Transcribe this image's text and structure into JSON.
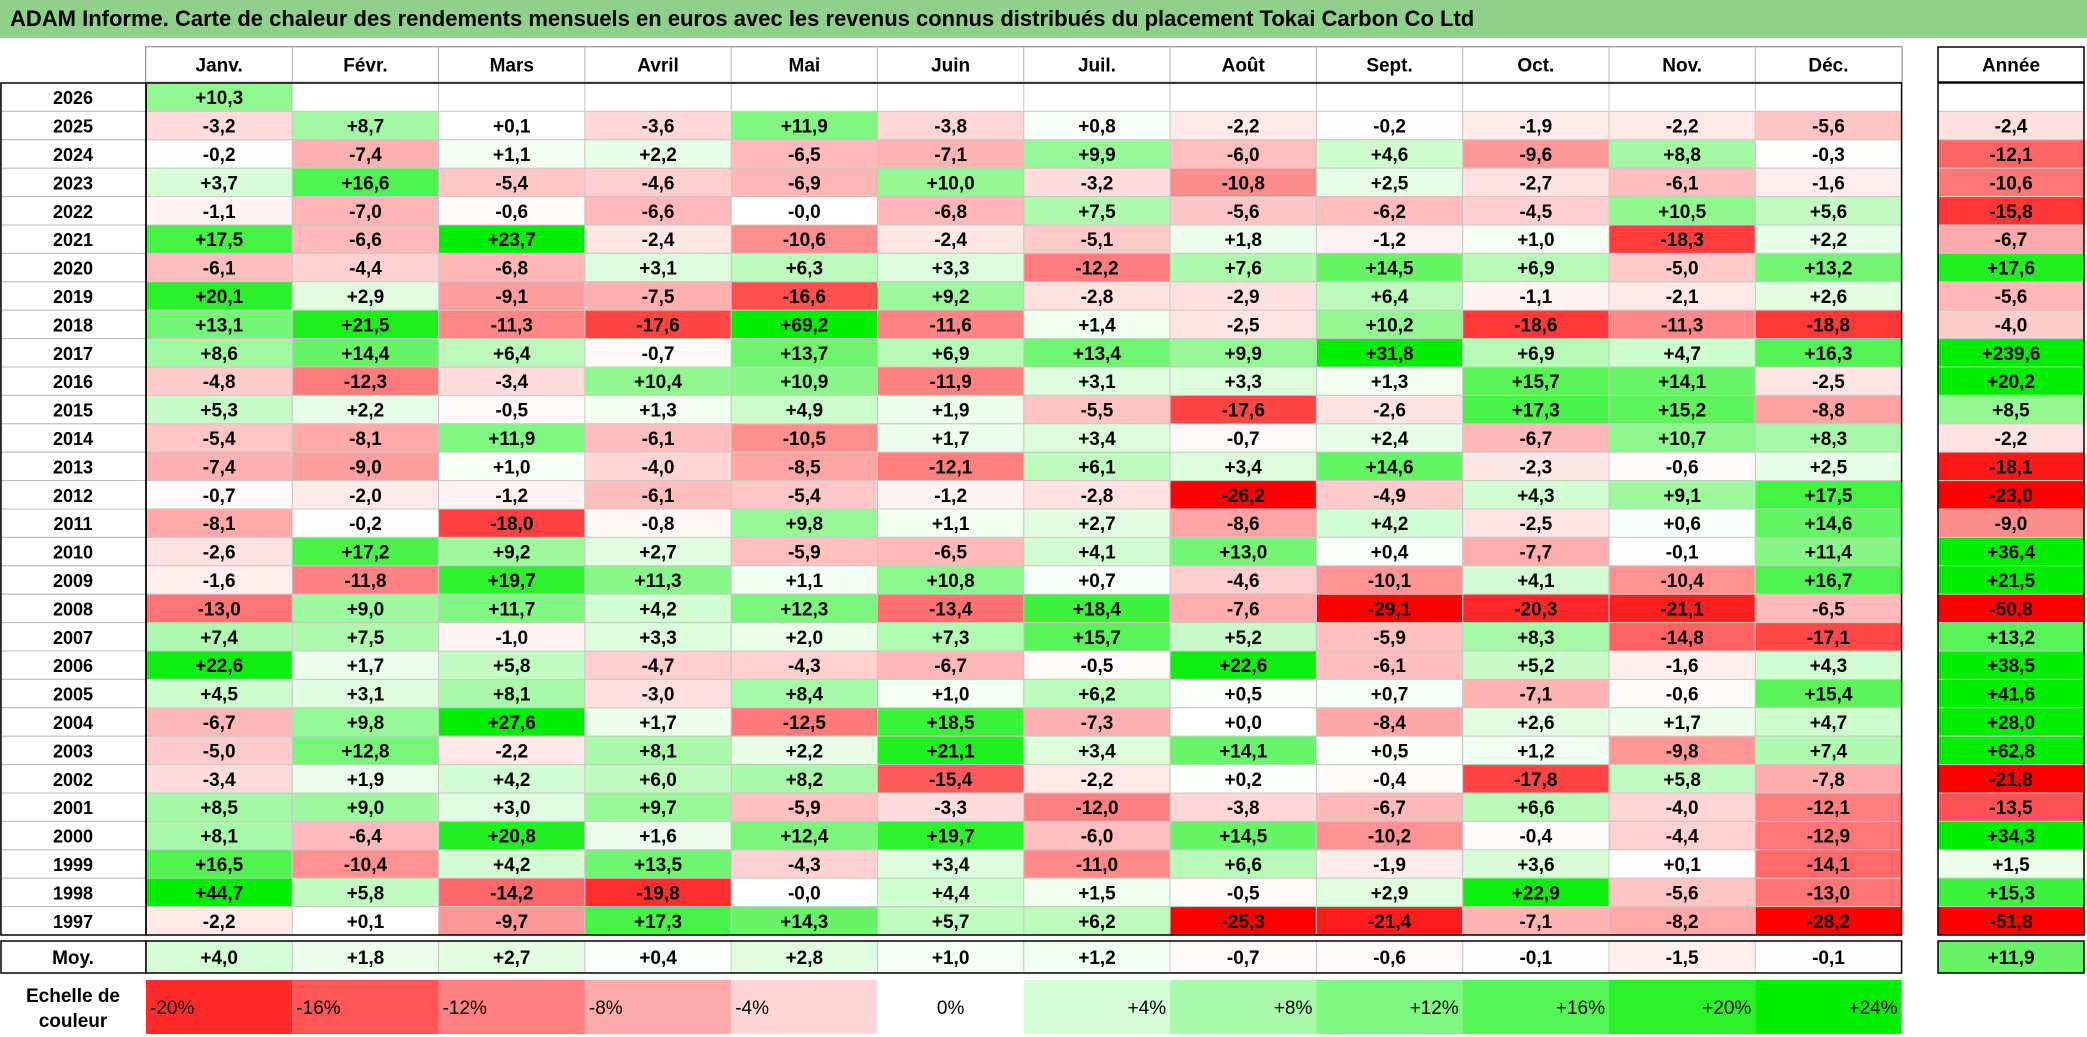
{
  "title": "ADAM Informe. Carte de chaleur des rendements mensuels en euros avec les revenus connus distribués du placement Tokai Carbon Co Ltd",
  "chart_data": {
    "type": "heatmap",
    "months": [
      "Janv.",
      "Févr.",
      "Mars",
      "Avril",
      "Mai",
      "Juin",
      "Juil.",
      "Août",
      "Sept.",
      "Oct.",
      "Nov.",
      "Déc."
    ],
    "year_header": "Année",
    "rows": [
      {
        "year": "2026",
        "values": [
          "+10,3",
          null,
          null,
          null,
          null,
          null,
          null,
          null,
          null,
          null,
          null,
          null
        ],
        "annual": null
      },
      {
        "year": "2025",
        "values": [
          "-3,2",
          "+8,7",
          "+0,1",
          "-3,6",
          "+11,9",
          "-3,8",
          "+0,8",
          "-2,2",
          "-0,2",
          "-1,9",
          "-2,2",
          "-5,6"
        ],
        "annual": "-2,4"
      },
      {
        "year": "2024",
        "values": [
          "-0,2",
          "-7,4",
          "+1,1",
          "+2,2",
          "-6,5",
          "-7,1",
          "+9,9",
          "-6,0",
          "+4,6",
          "-9,6",
          "+8,8",
          "-0,3"
        ],
        "annual": "-12,1"
      },
      {
        "year": "2023",
        "values": [
          "+3,7",
          "+16,6",
          "-5,4",
          "-4,6",
          "-6,9",
          "+10,0",
          "-3,2",
          "-10,8",
          "+2,5",
          "-2,7",
          "-6,1",
          "-1,6"
        ],
        "annual": "-10,6"
      },
      {
        "year": "2022",
        "values": [
          "-1,1",
          "-7,0",
          "-0,6",
          "-6,6",
          "-0,0",
          "-6,8",
          "+7,5",
          "-5,6",
          "-6,2",
          "-4,5",
          "+10,5",
          "+5,6"
        ],
        "annual": "-15,8"
      },
      {
        "year": "2021",
        "values": [
          "+17,5",
          "-6,6",
          "+23,7",
          "-2,4",
          "-10,6",
          "-2,4",
          "-5,1",
          "+1,8",
          "-1,2",
          "+1,0",
          "-18,3",
          "+2,2"
        ],
        "annual": "-6,7"
      },
      {
        "year": "2020",
        "values": [
          "-6,1",
          "-4,4",
          "-6,8",
          "+3,1",
          "+6,3",
          "+3,3",
          "-12,2",
          "+7,6",
          "+14,5",
          "+6,9",
          "-5,0",
          "+13,2"
        ],
        "annual": "+17,6"
      },
      {
        "year": "2019",
        "values": [
          "+20,1",
          "+2,9",
          "-9,1",
          "-7,5",
          "-16,6",
          "+9,2",
          "-2,8",
          "-2,9",
          "+6,4",
          "-1,1",
          "-2,1",
          "+2,6"
        ],
        "annual": "-5,6"
      },
      {
        "year": "2018",
        "values": [
          "+13,1",
          "+21,5",
          "-11,3",
          "-17,6",
          "+69,2",
          "-11,6",
          "+1,4",
          "-2,5",
          "+10,2",
          "-18,6",
          "-11,3",
          "-18,8"
        ],
        "annual": "-4,0"
      },
      {
        "year": "2017",
        "values": [
          "+8,6",
          "+14,4",
          "+6,4",
          "-0,7",
          "+13,7",
          "+6,9",
          "+13,4",
          "+9,9",
          "+31,8",
          "+6,9",
          "+4,7",
          "+16,3"
        ],
        "annual": "+239,6"
      },
      {
        "year": "2016",
        "values": [
          "-4,8",
          "-12,3",
          "-3,4",
          "+10,4",
          "+10,9",
          "-11,9",
          "+3,1",
          "+3,3",
          "+1,3",
          "+15,7",
          "+14,1",
          "-2,5"
        ],
        "annual": "+20,2"
      },
      {
        "year": "2015",
        "values": [
          "+5,3",
          "+2,2",
          "-0,5",
          "+1,3",
          "+4,9",
          "+1,9",
          "-5,5",
          "-17,6",
          "-2,6",
          "+17,3",
          "+15,2",
          "-8,8"
        ],
        "annual": "+8,5"
      },
      {
        "year": "2014",
        "values": [
          "-5,4",
          "-8,1",
          "+11,9",
          "-6,1",
          "-10,5",
          "+1,7",
          "+3,4",
          "-0,7",
          "+2,4",
          "-6,7",
          "+10,7",
          "+8,3"
        ],
        "annual": "-2,2"
      },
      {
        "year": "2013",
        "values": [
          "-7,4",
          "-9,0",
          "+1,0",
          "-4,0",
          "-8,5",
          "-12,1",
          "+6,1",
          "+3,4",
          "+14,6",
          "-2,3",
          "-0,6",
          "+2,5"
        ],
        "annual": "-18,1"
      },
      {
        "year": "2012",
        "values": [
          "-0,7",
          "-2,0",
          "-1,2",
          "-6,1",
          "-5,4",
          "-1,2",
          "-2,8",
          "-26,2",
          "-4,9",
          "+4,3",
          "+9,1",
          "+17,5"
        ],
        "annual": "-23,0"
      },
      {
        "year": "2011",
        "values": [
          "-8,1",
          "-0,2",
          "-18,0",
          "-0,8",
          "+9,8",
          "+1,1",
          "+2,7",
          "-8,6",
          "+4,2",
          "-2,5",
          "+0,6",
          "+14,6"
        ],
        "annual": "-9,0"
      },
      {
        "year": "2010",
        "values": [
          "-2,6",
          "+17,2",
          "+9,2",
          "+2,7",
          "-5,9",
          "-6,5",
          "+4,1",
          "+13,0",
          "+0,4",
          "-7,7",
          "-0,1",
          "+11,4"
        ],
        "annual": "+36,4"
      },
      {
        "year": "2009",
        "values": [
          "-1,6",
          "-11,8",
          "+19,7",
          "+11,3",
          "+1,1",
          "+10,8",
          "+0,7",
          "-4,6",
          "-10,1",
          "+4,1",
          "-10,4",
          "+16,7"
        ],
        "annual": "+21,5"
      },
      {
        "year": "2008",
        "values": [
          "-13,0",
          "+9,0",
          "+11,7",
          "+4,2",
          "+12,3",
          "-13,4",
          "+18,4",
          "-7,6",
          "-29,1",
          "-20,3",
          "-21,1",
          "-6,5"
        ],
        "annual": "-50,8"
      },
      {
        "year": "2007",
        "values": [
          "+7,4",
          "+7,5",
          "-1,0",
          "+3,3",
          "+2,0",
          "+7,3",
          "+15,7",
          "+5,2",
          "-5,9",
          "+8,3",
          "-14,8",
          "-17,1"
        ],
        "annual": "+13,2"
      },
      {
        "year": "2006",
        "values": [
          "+22,6",
          "+1,7",
          "+5,8",
          "-4,7",
          "-4,3",
          "-6,7",
          "-0,5",
          "+22,6",
          "-6,1",
          "+5,2",
          "-1,6",
          "+4,3"
        ],
        "annual": "+38,5"
      },
      {
        "year": "2005",
        "values": [
          "+4,5",
          "+3,1",
          "+8,1",
          "-3,0",
          "+8,4",
          "+1,0",
          "+6,2",
          "+0,5",
          "+0,7",
          "-7,1",
          "-0,6",
          "+15,4"
        ],
        "annual": "+41,6"
      },
      {
        "year": "2004",
        "values": [
          "-6,7",
          "+9,8",
          "+27,6",
          "+1,7",
          "-12,5",
          "+18,5",
          "-7,3",
          "+0,0",
          "-8,4",
          "+2,6",
          "+1,7",
          "+4,7"
        ],
        "annual": "+28,0"
      },
      {
        "year": "2003",
        "values": [
          "-5,0",
          "+12,8",
          "-2,2",
          "+8,1",
          "+2,2",
          "+21,1",
          "+3,4",
          "+14,1",
          "+0,5",
          "+1,2",
          "-9,8",
          "+7,4"
        ],
        "annual": "+62,8"
      },
      {
        "year": "2002",
        "values": [
          "-3,4",
          "+1,9",
          "+4,2",
          "+6,0",
          "+8,2",
          "-15,4",
          "-2,2",
          "+0,2",
          "-0,4",
          "-17,8",
          "+5,8",
          "-7,8"
        ],
        "annual": "-21,8"
      },
      {
        "year": "2001",
        "values": [
          "+8,5",
          "+9,0",
          "+3,0",
          "+9,7",
          "-5,9",
          "-3,3",
          "-12,0",
          "-3,8",
          "-6,7",
          "+6,6",
          "-4,0",
          "-12,1"
        ],
        "annual": "-13,5"
      },
      {
        "year": "2000",
        "values": [
          "+8,1",
          "-6,4",
          "+20,8",
          "+1,6",
          "+12,4",
          "+19,7",
          "-6,0",
          "+14,5",
          "-10,2",
          "-0,4",
          "-4,4",
          "-12,9"
        ],
        "annual": "+34,3"
      },
      {
        "year": "1999",
        "values": [
          "+16,5",
          "-10,4",
          "+4,2",
          "+13,5",
          "-4,3",
          "+3,4",
          "-11,0",
          "+6,6",
          "-1,9",
          "+3,6",
          "+0,1",
          "-14,1"
        ],
        "annual": "+1,5"
      },
      {
        "year": "1998",
        "values": [
          "+44,7",
          "+5,8",
          "-14,2",
          "-19,8",
          "-0,0",
          "+4,4",
          "+1,5",
          "-0,5",
          "+2,9",
          "+22,9",
          "-5,6",
          "-13,0"
        ],
        "annual": "+15,3"
      },
      {
        "year": "1997",
        "values": [
          "-2,2",
          "+0,1",
          "-9,7",
          "+17,3",
          "+14,3",
          "+5,7",
          "+6,2",
          "-25,3",
          "-21,4",
          "-7,1",
          "-8,2",
          "-28,2"
        ],
        "annual": "-51,8"
      }
    ],
    "average": {
      "label": "Moy.",
      "values": [
        "+4,0",
        "+1,8",
        "+2,7",
        "+0,4",
        "+2,8",
        "+1,0",
        "+1,2",
        "-0,7",
        "-0,6",
        "-0,1",
        "-1,5",
        "-0,1"
      ],
      "annual": "+11,9"
    },
    "scale": {
      "label": "Echelle de couleur",
      "steps": [
        "-20%",
        "-16%",
        "-12%",
        "-8%",
        "-4%",
        "0%",
        "+4%",
        "+8%",
        "+12%",
        "+16%",
        "+20%",
        "+24%"
      ],
      "values": [
        -20,
        -16,
        -12,
        -8,
        -4,
        0,
        4,
        8,
        12,
        16,
        20,
        24
      ]
    },
    "colors": {
      "negative": "#ff0000",
      "neutral": "#ffffff",
      "positive": "#00ee00",
      "title_bg": "#8fd18a"
    }
  }
}
